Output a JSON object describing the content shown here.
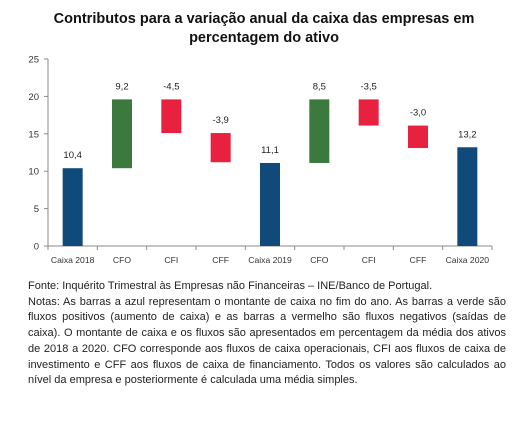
{
  "title_line1": "Contributos para a variação anual da caixa das empresas em",
  "title_line2": "percentagem do ativo",
  "chart_data": {
    "type": "bar",
    "subtype": "waterfall",
    "categories": [
      "Caixa 2018",
      "CFO",
      "CFI",
      "CFF",
      "Caixa 2019",
      "CFO",
      "CFI",
      "CFF",
      "Caixa 2020"
    ],
    "values": [
      10.4,
      9.2,
      -4.5,
      -3.9,
      11.1,
      8.5,
      -3.5,
      -3.0,
      13.2
    ],
    "value_labels": [
      "10,4",
      "9,2",
      "-4,5",
      "-3,9",
      "11,1",
      "8,5",
      "-3,5",
      "-3,0",
      "13,2"
    ],
    "kinds": [
      "total",
      "flow",
      "flow",
      "flow",
      "total",
      "flow",
      "flow",
      "flow",
      "total"
    ],
    "ylim": [
      0,
      25
    ],
    "yticks": [
      0,
      5,
      10,
      15,
      20,
      25
    ],
    "grid": false,
    "colors": {
      "total": "#0f4a7b",
      "positive": "#3b7a3c",
      "negative": "#e8213f"
    }
  },
  "notes": {
    "source": "Fonte: Inquérito Trimestral às Empresas não Financeiras – INE/Banco de Portugal.",
    "text": "Notas: As barras a azul representam o montante de caixa no fim do ano. As barras a verde são fluxos positivos (aumento de caixa) e as barras a vermelho são fluxos negativos (saídas de caixa). O montante de caixa e os fluxos são apresentados em percentagem da média dos ativos de 2018 a 2020. CFO corresponde aos fluxos de caixa operacionais, CFI aos fluxos de caixa de investimento e CFF aos fluxos de caixa de financiamento. Todos os valores são calculados ao nível da empresa e posteriormente é calculada uma média simples."
  }
}
